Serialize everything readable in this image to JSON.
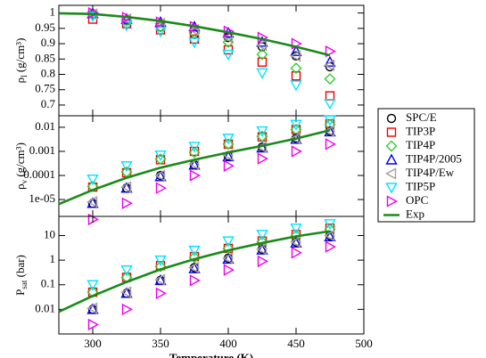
{
  "chart_data": [
    {
      "type": "scatter",
      "ylabel": {
        "symbol": "ρ",
        "sub": "l",
        "unit": " (g/cm³)"
      },
      "xlim": [
        275,
        500
      ],
      "ylim": [
        0.665,
        1.025
      ],
      "yticks": [
        0.7,
        0.75,
        0.8,
        0.85,
        0.9,
        0.95,
        1
      ],
      "log": false,
      "legend": "right",
      "series": [
        {
          "name": "SPC/E",
          "color": "#000000",
          "marker": "circle",
          "x": [
            300,
            325,
            350,
            375,
            400,
            425,
            450,
            475
          ],
          "values": [
            0.997,
            0.975,
            0.955,
            0.93,
            0.92,
            0.89,
            0.86,
            0.825
          ]
        },
        {
          "name": "TIP3P",
          "color": "#ee0000",
          "marker": "square",
          "x": [
            300,
            325,
            350,
            375,
            400,
            425,
            450,
            475
          ],
          "values": [
            0.98,
            0.965,
            0.945,
            0.915,
            0.88,
            0.84,
            0.795,
            0.73
          ]
        },
        {
          "name": "TIP4P",
          "color": "#33cc33",
          "marker": "diamond",
          "x": [
            300,
            325,
            350,
            375,
            400,
            425,
            450,
            475
          ],
          "values": [
            0.998,
            0.975,
            0.955,
            0.935,
            0.905,
            0.865,
            0.82,
            0.785
          ]
        },
        {
          "name": "TIP4P/2005",
          "color": "#0000ee",
          "marker": "triangle-up",
          "x": [
            300,
            325,
            350,
            375,
            400,
            425,
            450,
            475
          ],
          "values": [
            0.998,
            0.98,
            0.97,
            0.955,
            0.935,
            0.905,
            0.875,
            0.84
          ]
        },
        {
          "name": "TIP4P/Ew",
          "color": "#a89c96",
          "marker": "triangle-left",
          "x": [
            300,
            325,
            350,
            375,
            400,
            425,
            450,
            475
          ],
          "values": [
            0.996,
            0.98,
            0.965,
            0.945,
            0.92,
            0.895,
            0.86,
            0.83
          ]
        },
        {
          "name": "TIP5P",
          "color": "#00e5ff",
          "marker": "triangle-down",
          "x": [
            300,
            325,
            350,
            375,
            400,
            425,
            450,
            475
          ],
          "values": [
            0.99,
            0.96,
            0.94,
            0.905,
            0.865,
            0.805,
            0.765,
            0.705
          ]
        },
        {
          "name": "OPC",
          "color": "#ee00ee",
          "marker": "triangle-right",
          "x": [
            300,
            325,
            350,
            375,
            400,
            425,
            450,
            475
          ],
          "values": [
            1.0,
            0.985,
            0.97,
            0.955,
            0.94,
            0.92,
            0.9,
            0.875
          ]
        },
        {
          "name": "Exp",
          "color": "#1a8a1a",
          "marker": "line",
          "x": [
            275,
            300,
            325,
            350,
            375,
            400,
            425,
            450,
            475
          ],
          "values": [
            0.999,
            0.997,
            0.987,
            0.974,
            0.957,
            0.937,
            0.915,
            0.89,
            0.862
          ]
        }
      ]
    },
    {
      "type": "scatter",
      "ylabel": {
        "symbol": "ρ",
        "sub": "v",
        "unit": " (g/cm³)"
      },
      "xlim": [
        275,
        500
      ],
      "ylim": [
        2e-06,
        0.03
      ],
      "yticks": [
        {
          "value": 1e-05,
          "label": "1e-05"
        },
        0.0001,
        0.001,
        0.01
      ],
      "log": true,
      "series": [
        {
          "color": "#000000",
          "marker": "circle",
          "x": [
            300,
            325,
            350,
            375,
            400,
            425,
            450,
            475
          ],
          "values": [
            7e-06,
            3e-05,
            0.0001,
            0.00028,
            0.00065,
            0.0015,
            0.0035,
            0.007
          ]
        },
        {
          "color": "#ee0000",
          "marker": "square",
          "x": [
            300,
            325,
            350,
            375,
            400,
            425,
            450,
            475
          ],
          "values": [
            3.3e-05,
            0.00013,
            0.00045,
            0.001,
            0.002,
            0.004,
            0.008,
            0.014
          ]
        },
        {
          "color": "#33cc33",
          "marker": "diamond",
          "x": [
            300,
            325,
            350,
            375,
            400,
            425,
            450,
            475
          ],
          "values": [
            3.5e-05,
            0.00014,
            0.00048,
            0.0009,
            0.002,
            0.0042,
            0.008,
            0.013
          ]
        },
        {
          "color": "#0000ee",
          "marker": "triangle-up",
          "x": [
            300,
            325,
            350,
            375,
            400,
            425,
            450,
            475
          ],
          "values": [
            7e-06,
            3e-05,
            9e-05,
            0.00027,
            0.0006,
            0.0014,
            0.0032,
            0.0065
          ]
        },
        {
          "color": "#a89c96",
          "marker": "triangle-left",
          "x": [
            300,
            325,
            350,
            375,
            400,
            425,
            450,
            475
          ],
          "values": [
            8e-06,
            3.3e-05,
            0.0001,
            0.0003,
            0.0007,
            0.0015,
            0.0035,
            0.007
          ]
        },
        {
          "color": "#00e5ff",
          "marker": "triangle-down",
          "x": [
            300,
            325,
            350,
            375,
            400,
            425,
            450,
            475
          ],
          "values": [
            7e-05,
            0.00025,
            0.0007,
            0.0016,
            0.0035,
            0.007,
            0.013,
            0.02
          ]
        },
        {
          "color": "#ee00ee",
          "marker": "triangle-right",
          "x": [
            300,
            325,
            350,
            375,
            400,
            425,
            450,
            475
          ],
          "values": [
            1.5e-06,
            7e-06,
            3e-05,
            0.0001,
            0.00025,
            0.0005,
            0.001,
            0.002
          ]
        },
        {
          "color": "#1a8a1a",
          "marker": "line",
          "x": [
            275,
            300,
            325,
            350,
            375,
            400,
            425,
            450,
            475
          ],
          "values": [
            6.5e-06,
            2.5e-05,
            8e-05,
            0.00021,
            0.00045,
            0.0009,
            0.0017,
            0.0034,
            0.0075
          ]
        }
      ]
    },
    {
      "type": "scatter",
      "ylabel": {
        "symbol": "P",
        "sub": "sat",
        "unit": " (bar)"
      },
      "xlabel": "Temperature (K)",
      "xlim": [
        275,
        500
      ],
      "xticks": [
        300,
        350,
        400,
        450,
        500
      ],
      "ylim": [
        0.001,
        60
      ],
      "yticks": [
        0.01,
        0.1,
        1,
        10
      ],
      "log": true,
      "series": [
        {
          "color": "#000000",
          "marker": "circle",
          "x": [
            300,
            325,
            350,
            375,
            400,
            425,
            450,
            475
          ],
          "values": [
            0.01,
            0.045,
            0.15,
            0.5,
            1.2,
            2.8,
            5.5,
            10
          ]
        },
        {
          "color": "#ee0000",
          "marker": "square",
          "x": [
            300,
            325,
            350,
            375,
            400,
            425,
            450,
            475
          ],
          "values": [
            0.05,
            0.2,
            0.6,
            1.4,
            3,
            6,
            11,
            20
          ]
        },
        {
          "color": "#33cc33",
          "marker": "diamond",
          "x": [
            300,
            325,
            350,
            375,
            400,
            425,
            450,
            475
          ],
          "values": [
            0.05,
            0.2,
            0.55,
            1.3,
            3,
            5.5,
            10,
            18
          ]
        },
        {
          "color": "#0000ee",
          "marker": "triangle-up",
          "x": [
            300,
            325,
            350,
            375,
            400,
            425,
            450,
            475
          ],
          "values": [
            0.01,
            0.045,
            0.15,
            0.45,
            1.1,
            2.6,
            5,
            9
          ]
        },
        {
          "color": "#a89c96",
          "marker": "triangle-left",
          "x": [
            300,
            325,
            350,
            375,
            400,
            425,
            450,
            475
          ],
          "values": [
            0.011,
            0.05,
            0.16,
            0.5,
            1.2,
            2.8,
            5.5,
            10
          ]
        },
        {
          "color": "#00e5ff",
          "marker": "triangle-down",
          "x": [
            300,
            325,
            350,
            375,
            400,
            425,
            450,
            475
          ],
          "values": [
            0.1,
            0.4,
            1,
            2.5,
            6,
            11,
            20,
            30
          ]
        },
        {
          "color": "#ee00ee",
          "marker": "triangle-right",
          "x": [
            300,
            325,
            350,
            375,
            400,
            425,
            450,
            475
          ],
          "values": [
            0.0024,
            0.01,
            0.045,
            0.15,
            0.4,
            0.9,
            2,
            3.5
          ]
        },
        {
          "color": "#1a8a1a",
          "marker": "line",
          "x": [
            275,
            300,
            325,
            350,
            375,
            400,
            425,
            450,
            475
          ],
          "values": [
            0.008,
            0.035,
            0.13,
            0.42,
            1.1,
            2.5,
            5,
            9.3,
            15
          ]
        }
      ]
    }
  ]
}
